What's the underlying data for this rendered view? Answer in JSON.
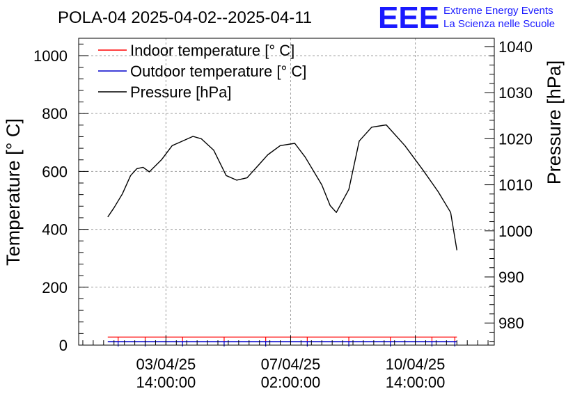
{
  "header": {
    "logo_text": "EEE",
    "org_line1": "Extreme Energy Events",
    "org_line2": "La Scienza nelle Scuole"
  },
  "colors": {
    "indoor": "#ff0000",
    "outdoor": "#0000cc",
    "pressure": "#000000",
    "grid": "#a0a0a0",
    "logo": "#1a1aff"
  },
  "chart_data": {
    "type": "line",
    "title": "POLA-04 2025-04-02--2025-04-11",
    "ylabel": "Temperature [° C]",
    "y2label": "Pressure [hPa]",
    "xlabel": "",
    "ylim": [
      0,
      1060
    ],
    "y2lim": [
      975.2,
      1041.8
    ],
    "xlim_days": [
      0,
      10.0
    ],
    "y_ticks": [
      {
        "value": 0,
        "label": "0"
      },
      {
        "value": 200,
        "label": "200"
      },
      {
        "value": 400,
        "label": "400"
      },
      {
        "value": 600,
        "label": "600"
      },
      {
        "value": 800,
        "label": "800"
      },
      {
        "value": 1000,
        "label": "1000"
      }
    ],
    "y2_ticks": [
      {
        "value": 980,
        "label": "980"
      },
      {
        "value": 990,
        "label": "990"
      },
      {
        "value": 1000,
        "label": "1000"
      },
      {
        "value": 1010,
        "label": "1010"
      },
      {
        "value": 1020,
        "label": "1020"
      },
      {
        "value": 1030,
        "label": "1030"
      },
      {
        "value": 1040,
        "label": "1040"
      }
    ],
    "x_ticks": [
      {
        "value": 2.1,
        "date": "03/04/25",
        "time": "14:00:00"
      },
      {
        "value": 5.1,
        "date": "07/04/25",
        "time": "02:00:00"
      },
      {
        "value": 8.1,
        "date": "10/04/25",
        "time": "14:00:00"
      }
    ],
    "legend": {
      "position": "top-left",
      "entries": [
        "Indoor temperature [° C]",
        "Outdoor temperature [° C]",
        "Pressure [hPa]"
      ]
    },
    "series": [
      {
        "name": "Indoor temperature [° C]",
        "axis": "left",
        "x": [
          0.7,
          1.2,
          2.0,
          3.0,
          4.0,
          5.0,
          6.0,
          7.0,
          8.0,
          9.0,
          9.1
        ],
        "y": [
          28,
          28,
          28,
          28,
          28,
          28,
          28,
          28,
          28,
          28,
          28
        ]
      },
      {
        "name": "Outdoor temperature [° C]",
        "axis": "left",
        "x": [
          0.7,
          1.2,
          2.0,
          3.0,
          4.0,
          5.0,
          6.0,
          7.0,
          8.0,
          9.0,
          9.1
        ],
        "y": [
          12,
          12,
          12,
          12,
          12,
          12,
          12,
          12,
          12,
          12,
          12
        ]
      },
      {
        "name": "Pressure [hPa]",
        "axis": "right",
        "x": [
          0.7,
          0.85,
          1.05,
          1.25,
          1.4,
          1.55,
          1.7,
          2.0,
          2.25,
          2.45,
          2.75,
          2.95,
          3.25,
          3.55,
          3.8,
          4.05,
          4.3,
          4.55,
          4.85,
          5.2,
          5.45,
          5.85,
          6.05,
          6.2,
          6.5,
          6.75,
          7.05,
          7.4,
          7.85,
          8.3,
          8.65,
          8.95,
          9.1
        ],
        "y": [
          1003.0,
          1005.0,
          1008.0,
          1012.0,
          1013.5,
          1013.8,
          1012.8,
          1015.5,
          1018.5,
          1019.3,
          1020.5,
          1020.0,
          1017.5,
          1012.0,
          1011.0,
          1011.5,
          1014.0,
          1016.5,
          1018.5,
          1019.0,
          1016.0,
          1010.0,
          1005.5,
          1004.0,
          1009.0,
          1019.5,
          1022.5,
          1023.0,
          1018.5,
          1013.0,
          1008.5,
          1004.0,
          995.8
        ]
      }
    ]
  }
}
